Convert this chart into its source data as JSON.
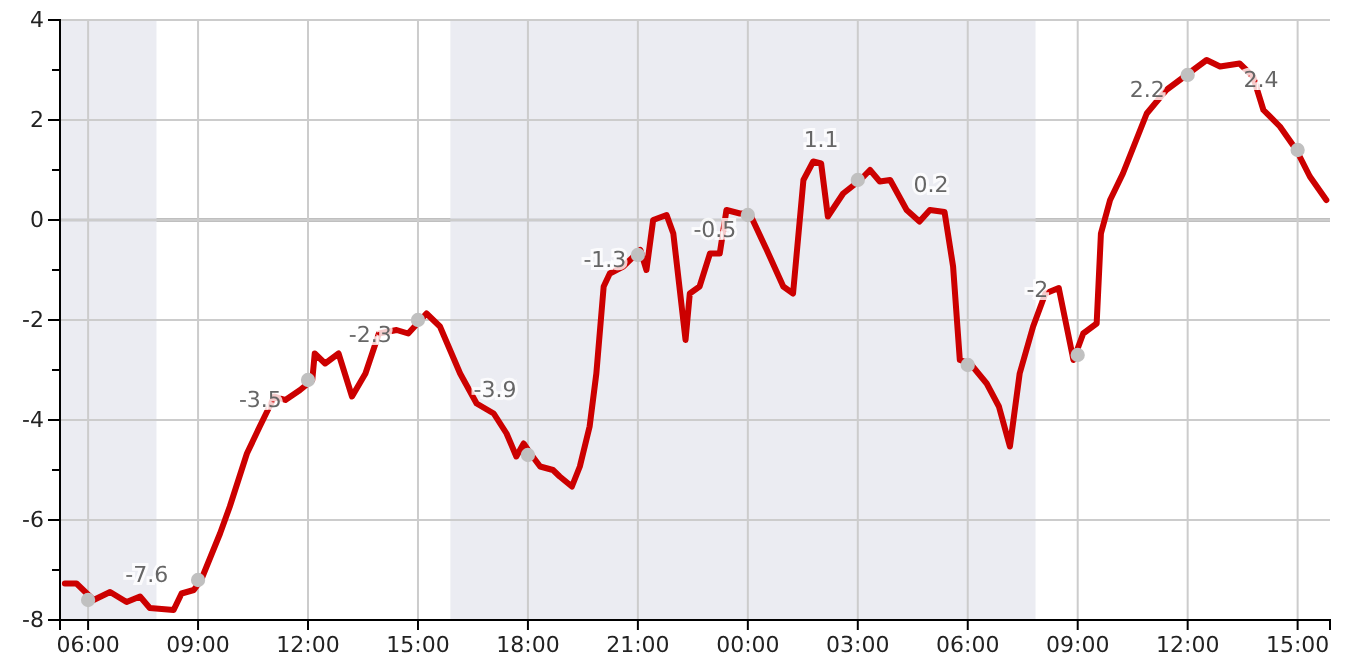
{
  "chart_data": {
    "type": "line",
    "xlim": [
      "2000-01-01T05:14",
      "2000-01-02T15:53"
    ],
    "ylim": [
      -8,
      4
    ],
    "xticks": [
      {
        "value": "2000-01-01T06:00",
        "label": "06:00"
      },
      {
        "value": "2000-01-01T09:00",
        "label": "09:00"
      },
      {
        "value": "2000-01-01T12:00",
        "label": "12:00"
      },
      {
        "value": "2000-01-01T15:00",
        "label": "15:00"
      },
      {
        "value": "2000-01-01T18:00",
        "label": "18:00"
      },
      {
        "value": "2000-01-01T21:00",
        "label": "21:00"
      },
      {
        "value": "2000-01-02T00:00",
        "label": "00:00"
      },
      {
        "value": "2000-01-02T03:00",
        "label": "03:00"
      },
      {
        "value": "2000-01-02T06:00",
        "label": "06:00"
      },
      {
        "value": "2000-01-02T09:00",
        "label": "09:00"
      },
      {
        "value": "2000-01-02T12:00",
        "label": "12:00"
      },
      {
        "value": "2000-01-02T15:00",
        "label": "15:00"
      }
    ],
    "yticks": [
      -8,
      {
        "value": -7,
        "label": null
      },
      -6,
      {
        "value": -5,
        "label": null
      },
      -4,
      {
        "value": -3,
        "label": null
      },
      -2,
      {
        "value": -1,
        "label": null
      },
      0,
      {
        "value": 1,
        "label": null
      },
      2,
      {
        "value": 3,
        "label": null
      },
      4
    ],
    "grid": true,
    "series": [
      {
        "color": "#cc0000",
        "marker": "none",
        "line_style": "solid",
        "x": [
          "2000-01-01T05:22",
          "2000-01-01T05:41",
          "2000-01-01T06:09",
          "2000-01-01T06:36",
          "2000-01-01T07:03",
          "2000-01-01T07:25",
          "2000-01-01T07:41",
          "2000-01-01T08:20",
          "2000-01-01T08:33",
          "2000-01-01T08:53",
          "2000-01-01T09:05",
          "2000-01-01T09:36",
          "2000-01-01T09:52",
          "2000-01-01T10:20",
          "2000-01-01T10:41",
          "2000-01-01T11:05",
          "2000-01-01T11:23",
          "2000-01-01T11:47",
          "2000-01-01T12:07",
          "2000-01-01T12:11",
          "2000-01-01T12:28",
          "2000-01-01T12:50",
          "2000-01-01T13:12",
          "2000-01-01T13:34",
          "2000-01-01T13:56",
          "2000-01-01T14:25",
          "2000-01-01T14:44",
          "2000-01-01T15:14",
          "2000-01-01T15:36",
          "2000-01-01T16:09",
          "2000-01-01T16:36",
          "2000-01-01T17:04",
          "2000-01-01T17:25",
          "2000-01-01T17:41",
          "2000-01-01T17:53",
          "2000-01-01T18:04",
          "2000-01-01T18:20",
          "2000-01-01T18:41",
          "2000-01-01T18:52",
          "2000-01-01T19:12",
          "2000-01-01T19:25",
          "2000-01-01T19:41",
          "2000-01-01T19:52",
          "2000-01-01T20:04",
          "2000-01-01T20:14",
          "2000-01-01T20:36",
          "2000-01-01T21:04",
          "2000-01-01T21:14",
          "2000-01-01T21:25",
          "2000-01-01T21:47",
          "2000-01-01T21:58",
          "2000-01-01T22:18",
          "2000-01-01T22:25",
          "2000-01-01T22:41",
          "2000-01-01T22:58",
          "2000-01-01T23:14",
          "2000-01-01T23:25",
          "2000-01-01T23:47",
          "2000-01-02T00:03",
          "2000-01-02T00:31",
          "2000-01-02T00:58",
          "2000-01-02T01:14",
          "2000-01-02T01:31",
          "2000-01-02T01:47",
          "2000-01-02T02:00",
          "2000-01-02T02:11",
          "2000-01-02T02:36",
          "2000-01-02T03:04",
          "2000-01-02T03:20",
          "2000-01-02T03:36",
          "2000-01-02T03:53",
          "2000-01-02T04:20",
          "2000-01-02T04:41",
          "2000-01-02T04:58",
          "2000-01-02T05:22",
          "2000-01-02T05:36",
          "2000-01-02T05:47",
          "2000-01-02T06:04",
          "2000-01-02T06:31",
          "2000-01-02T06:51",
          "2000-01-02T07:09",
          "2000-01-02T07:25",
          "2000-01-02T07:47",
          "2000-01-02T08:07",
          "2000-01-02T08:29",
          "2000-01-02T08:53",
          "2000-01-02T09:09",
          "2000-01-02T09:31",
          "2000-01-02T09:38",
          "2000-01-02T09:53",
          "2000-01-02T10:14",
          "2000-01-02T10:53",
          "2000-01-02T11:25",
          "2000-01-02T11:58",
          "2000-01-02T12:31",
          "2000-01-02T12:53",
          "2000-01-02T13:25",
          "2000-01-02T13:47",
          "2000-01-02T14:04",
          "2000-01-02T14:31",
          "2000-01-02T14:58",
          "2000-01-02T15:20",
          "2000-01-02T15:47"
        ],
        "values": [
          -7.27,
          -7.27,
          -7.6,
          -7.44,
          -7.64,
          -7.53,
          -7.76,
          -7.8,
          -7.47,
          -7.4,
          -7.2,
          -6.27,
          -5.73,
          -4.67,
          -4.13,
          -3.53,
          -3.6,
          -3.4,
          -3.2,
          -2.67,
          -2.87,
          -2.67,
          -3.53,
          -3.07,
          -2.27,
          -2.2,
          -2.27,
          -1.87,
          -2.13,
          -3.07,
          -3.67,
          -3.87,
          -4.27,
          -4.73,
          -4.47,
          -4.67,
          -4.93,
          -5.0,
          -5.13,
          -5.33,
          -4.93,
          -4.13,
          -3.07,
          -1.33,
          -1.07,
          -0.93,
          -0.6,
          -1.0,
          0.0,
          0.1,
          -0.27,
          -2.4,
          -1.47,
          -1.33,
          -0.67,
          -0.67,
          0.2,
          0.13,
          0.13,
          -0.6,
          -1.33,
          -1.47,
          0.8,
          1.17,
          1.13,
          0.07,
          0.53,
          0.8,
          1.0,
          0.77,
          0.8,
          0.2,
          -0.03,
          0.2,
          0.16,
          -0.93,
          -2.8,
          -2.87,
          -3.27,
          -3.73,
          -4.53,
          -3.07,
          -2.13,
          -1.47,
          -1.36,
          -2.8,
          -2.27,
          -2.07,
          -0.27,
          0.4,
          0.93,
          2.13,
          2.6,
          2.9,
          3.2,
          3.07,
          3.13,
          2.87,
          2.2,
          1.87,
          1.4,
          0.87,
          0.4
        ]
      },
      {
        "type": "scatter",
        "color": "#c0c0c0",
        "marker": "circle",
        "x": [
          "2000-01-01T06:00",
          "2000-01-01T09:00",
          "2000-01-01T12:00",
          "2000-01-01T15:00",
          "2000-01-01T18:00",
          "2000-01-01T21:00",
          "2000-01-02T00:00",
          "2000-01-02T03:00",
          "2000-01-02T06:00",
          "2000-01-02T09:00",
          "2000-01-02T12:00",
          "2000-01-02T15:00"
        ],
        "values": [
          -7.6,
          -7.2,
          -3.2,
          -2.0,
          -4.7,
          -0.7,
          0.1,
          0.8,
          -2.9,
          -2.7,
          2.9,
          1.4
        ]
      }
    ],
    "ref_lines": [
      {
        "axis": "y",
        "value": 0,
        "color": "#000000"
      }
    ],
    "bands": [
      {
        "axis": "x",
        "from": "2000-01-01T05:14",
        "to": "2000-01-01T07:52",
        "color": "#e2e4ec"
      },
      {
        "axis": "x",
        "from": "2000-01-01T15:53",
        "to": "2000-01-02T07:51",
        "color": "#e2e4ec"
      }
    ],
    "annotations": [
      {
        "text": "-7.6",
        "x": "2000-01-01T07:36",
        "y": -7.6
      },
      {
        "text": "-3.5",
        "x": "2000-01-01T10:42",
        "y": -4.1
      },
      {
        "text": "-2.3",
        "x": "2000-01-01T13:42",
        "y": -2.8
      },
      {
        "text": "-3.9",
        "x": "2000-01-01T17:06",
        "y": -3.9
      },
      {
        "text": "-1.3",
        "x": "2000-01-01T20:06",
        "y": -1.3
      },
      {
        "text": "-0.5",
        "x": "2000-01-01T23:06",
        "y": -0.7
      },
      {
        "text": "1.1",
        "x": "2000-01-02T02:00",
        "y": 1.1
      },
      {
        "text": "0.2",
        "x": "2000-01-02T05:00",
        "y": 0.2
      },
      {
        "text": "-2",
        "x": "2000-01-02T07:54",
        "y": -1.9
      },
      {
        "text": "2.2",
        "x": "2000-01-02T10:54",
        "y": 2.1
      },
      {
        "text": "2.4",
        "x": "2000-01-02T14:00",
        "y": 2.3
      }
    ]
  }
}
